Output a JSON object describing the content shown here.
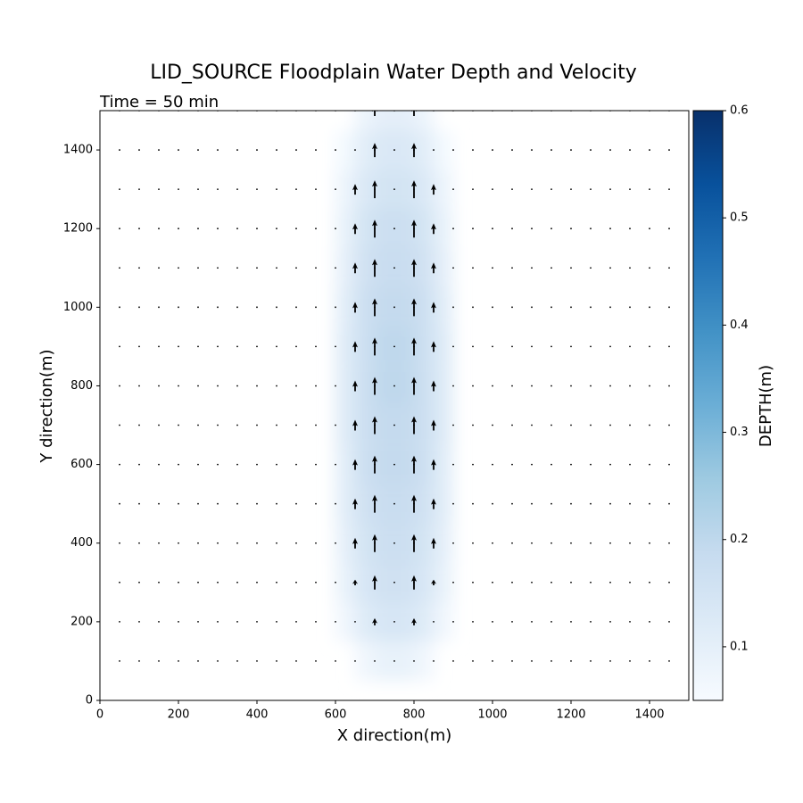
{
  "chart_data": {
    "type": "quiver",
    "title": "LID_SOURCE Floodplain Water Depth and Velocity",
    "subtitle": "Time = 50 min",
    "x_label": "X direction(m)",
    "y_label": "Y direction(m)",
    "colorbar_label": "DEPTH(m)",
    "colormap": "Blues",
    "clim": [
      0.05,
      0.6
    ],
    "colorbar_ticks": [
      0.1,
      0.2,
      0.3,
      0.4,
      0.5,
      0.6
    ],
    "xlim": [
      0,
      1500
    ],
    "ylim": [
      0,
      1500
    ],
    "xticks": [
      0,
      200,
      400,
      600,
      800,
      1000,
      1200,
      1400
    ],
    "yticks": [
      0,
      200,
      400,
      600,
      800,
      1000,
      1200,
      1400
    ],
    "depth_x": [
      625,
      675,
      725,
      775,
      825,
      875
    ],
    "depth_y": [
      100,
      200,
      300,
      400,
      500,
      600,
      700,
      800,
      900,
      1000,
      1100,
      1200,
      1300,
      1400,
      1500
    ],
    "depth": [
      [
        null,
        0.07,
        0.09,
        0.09,
        0.07,
        null
      ],
      [
        0.07,
        0.12,
        0.14,
        0.14,
        0.12,
        0.07
      ],
      [
        0.09,
        0.14,
        0.16,
        0.16,
        0.14,
        0.09
      ],
      [
        0.1,
        0.15,
        0.17,
        0.17,
        0.15,
        0.1
      ],
      [
        0.11,
        0.16,
        0.18,
        0.18,
        0.16,
        0.11
      ],
      [
        0.11,
        0.17,
        0.19,
        0.19,
        0.17,
        0.11
      ],
      [
        0.12,
        0.17,
        0.19,
        0.19,
        0.17,
        0.12
      ],
      [
        0.12,
        0.17,
        0.2,
        0.2,
        0.17,
        0.12
      ],
      [
        0.12,
        0.17,
        0.2,
        0.2,
        0.17,
        0.12
      ],
      [
        0.11,
        0.17,
        0.19,
        0.19,
        0.17,
        0.11
      ],
      [
        0.1,
        0.16,
        0.18,
        0.18,
        0.16,
        0.1
      ],
      [
        0.09,
        0.15,
        0.17,
        0.17,
        0.15,
        0.09
      ],
      [
        0.08,
        0.13,
        0.15,
        0.15,
        0.13,
        0.08
      ],
      [
        0.06,
        0.11,
        0.13,
        0.13,
        0.11,
        0.06
      ],
      [
        null,
        0.08,
        0.1,
        0.1,
        0.08,
        null
      ]
    ],
    "grid_x": [
      50,
      100,
      150,
      200,
      250,
      300,
      350,
      400,
      450,
      500,
      550,
      600,
      650,
      700,
      750,
      800,
      850,
      900,
      950,
      1000,
      1050,
      1100,
      1150,
      1200,
      1250,
      1300,
      1350,
      1400,
      1450
    ],
    "grid_y": [
      100,
      200,
      300,
      400,
      500,
      600,
      700,
      800,
      900,
      1000,
      1100,
      1200,
      1300,
      1400,
      1500
    ],
    "arrows": [
      {
        "x": 650,
        "y": [
          300,
          400,
          500,
          600,
          700,
          800,
          900,
          1000,
          1100,
          1200,
          1300
        ],
        "v": [
          0.08,
          0.15,
          0.15,
          0.15,
          0.15,
          0.15,
          0.15,
          0.15,
          0.15,
          0.15,
          0.15
        ]
      },
      {
        "x": 700,
        "y": [
          200,
          300,
          400,
          500,
          600,
          700,
          800,
          900,
          1000,
          1100,
          1200,
          1300,
          1400,
          1500
        ],
        "v": [
          0.1,
          0.2,
          0.25,
          0.25,
          0.25,
          0.25,
          0.25,
          0.25,
          0.25,
          0.25,
          0.25,
          0.25,
          0.2,
          0.15
        ]
      },
      {
        "x": 800,
        "y": [
          200,
          300,
          400,
          500,
          600,
          700,
          800,
          900,
          1000,
          1100,
          1200,
          1300,
          1400,
          1500
        ],
        "v": [
          0.1,
          0.2,
          0.25,
          0.25,
          0.25,
          0.25,
          0.25,
          0.25,
          0.25,
          0.25,
          0.25,
          0.25,
          0.2,
          0.15
        ]
      },
      {
        "x": 850,
        "y": [
          300,
          400,
          500,
          600,
          700,
          800,
          900,
          1000,
          1100,
          1200,
          1300
        ],
        "v": [
          0.08,
          0.15,
          0.15,
          0.15,
          0.15,
          0.15,
          0.15,
          0.15,
          0.15,
          0.15,
          0.15
        ]
      }
    ]
  }
}
